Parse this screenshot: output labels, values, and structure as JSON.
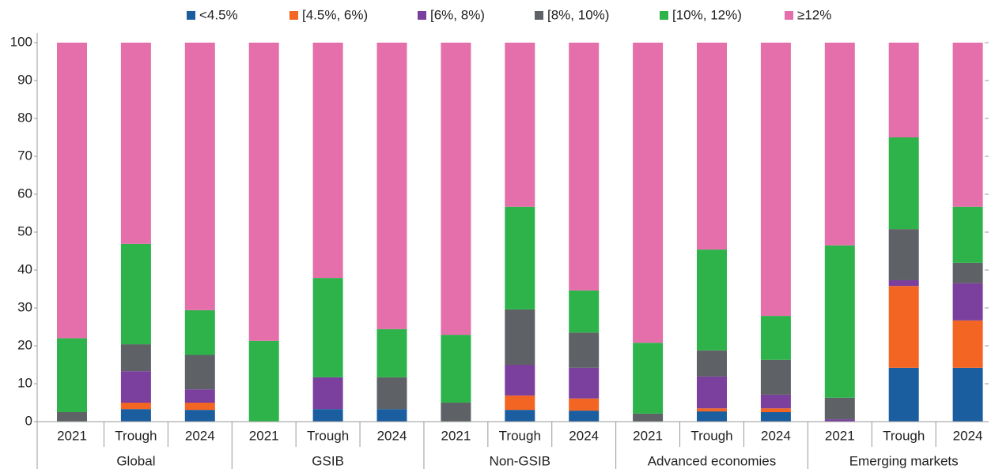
{
  "chart_data": {
    "type": "bar",
    "stacked": true,
    "groups": [
      {
        "name": "Global",
        "categories": [
          "2021",
          "Trough",
          "2024"
        ]
      },
      {
        "name": "GSIB",
        "categories": [
          "2021",
          "Trough",
          "2024"
        ]
      },
      {
        "name": "Non-GSIB",
        "categories": [
          "2021",
          "Trough",
          "2024"
        ]
      },
      {
        "name": "Advanced economies",
        "categories": [
          "2021",
          "Trough",
          "2024"
        ]
      },
      {
        "name": "Emerging markets",
        "categories": [
          "2021",
          "Trough",
          "2024"
        ]
      }
    ],
    "series": [
      {
        "name": "<4.5%",
        "color": "#1b5e9f",
        "values": [
          0,
          3.3,
          3.1,
          0,
          3.3,
          3.3,
          0,
          3.1,
          2.9,
          0,
          2.7,
          2.5,
          0,
          14.2,
          14.2
        ]
      },
      {
        "name": "[4.5%, 6%)",
        "color": "#f26522",
        "values": [
          0,
          1.7,
          1.9,
          0,
          0,
          0,
          0,
          3.8,
          3.2,
          0,
          0.8,
          1.0,
          0,
          21.6,
          12.5
        ]
      },
      {
        "name": "[6%, 8%)",
        "color": "#7b3f9e",
        "values": [
          0,
          8.3,
          3.5,
          0,
          8.4,
          0,
          0,
          8.1,
          8.1,
          0,
          8.4,
          3.6,
          0.6,
          1.5,
          9.8
        ]
      },
      {
        "name": "[8%, 10%)",
        "color": "#5e6166",
        "values": [
          2.5,
          7.1,
          9.1,
          0,
          0,
          8.4,
          5.0,
          14.6,
          9.3,
          2.1,
          6.9,
          9.2,
          5.7,
          13.5,
          5.4
        ]
      },
      {
        "name": "[10%, 12%)",
        "color": "#2db34a",
        "values": [
          19.5,
          26.5,
          11.8,
          21.3,
          26.2,
          12.7,
          17.9,
          27.1,
          11.1,
          18.7,
          26.6,
          11.6,
          40.2,
          24.2,
          14.8
        ]
      },
      {
        "name": "≥12%",
        "color": "#e46fab",
        "values": [
          78.0,
          53.1,
          70.6,
          78.7,
          62.1,
          75.6,
          77.1,
          43.3,
          65.4,
          79.2,
          54.6,
          72.1,
          53.5,
          25.0,
          43.3
        ]
      }
    ],
    "ylim": [
      0,
      100
    ],
    "yticks": [
      0,
      10,
      20,
      30,
      40,
      50,
      60,
      70,
      80,
      90,
      100
    ],
    "legend": "top"
  }
}
